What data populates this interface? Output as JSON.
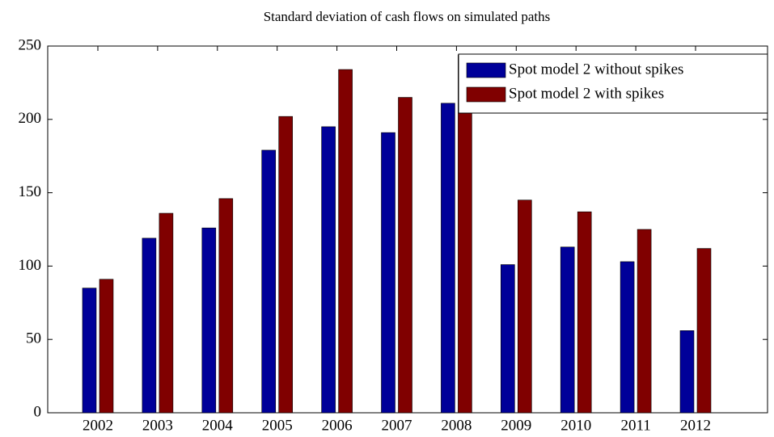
{
  "chart_data": {
    "type": "bar",
    "title": "Standard deviation of cash flows on simulated paths",
    "categories": [
      "2002",
      "2003",
      "2004",
      "2005",
      "2006",
      "2007",
      "2008",
      "2009",
      "2010",
      "2011",
      "2012"
    ],
    "series": [
      {
        "name": "Spot model 2 without spikes",
        "color": "#000099",
        "values": [
          85,
          119,
          126,
          179,
          195,
          191,
          211,
          101,
          113,
          103,
          56
        ]
      },
      {
        "name": "Spot model 2 with spikes",
        "color": "#800000",
        "values": [
          91,
          136,
          146,
          202,
          234,
          215,
          244,
          145,
          137,
          125,
          112
        ]
      }
    ],
    "ylim": [
      0,
      250
    ],
    "yticks": [
      0,
      50,
      100,
      150,
      200,
      250
    ],
    "grid": false,
    "legend": "north-east"
  }
}
